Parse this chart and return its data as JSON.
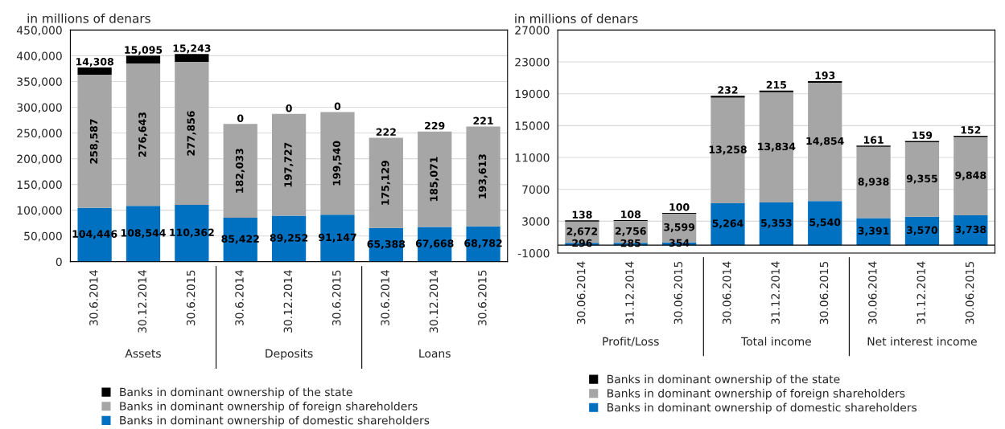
{
  "chart_data": [
    {
      "type": "bar",
      "stacked": true,
      "subtitle": "in millions of denars",
      "categories": [
        "30.6.2014",
        "30.12.2014",
        "30.6.2015",
        "30.6.2014",
        "30.12.2014",
        "30.6.2015",
        "30.6.2014",
        "30.12.2014",
        "30.6.2015"
      ],
      "annotations": [
        "Assets",
        "Deposits",
        "Loans"
      ],
      "series": [
        {
          "name": "Banks in dominant ownership of domestic shareholders",
          "color": "#0070c0",
          "values": [
            104446,
            108544,
            110362,
            85422,
            89252,
            91147,
            65388,
            67668,
            68782
          ],
          "value_labels": [
            "104,446",
            "108,544",
            "110,362",
            "85,422",
            "89,252",
            "91,147",
            "65,388",
            "67,668",
            "68,782"
          ]
        },
        {
          "name": "Banks in dominant ownership of foreign shareholders",
          "color": "#a6a6a6",
          "values": [
            258587,
            276643,
            277856,
            182033,
            197727,
            199540,
            175129,
            185071,
            193613
          ],
          "value_labels": [
            "258,587",
            "276,643",
            "277,856",
            "182,033",
            "197,727",
            "199,540",
            "175,129",
            "185,071",
            "193,613"
          ]
        },
        {
          "name": "Banks in dominant ownership of the state",
          "color": "#000000",
          "values": [
            14308,
            15095,
            15243,
            0,
            0,
            0,
            222,
            229,
            221
          ],
          "value_labels": [
            "14,308",
            "15,095",
            "15,243",
            "0",
            "0",
            "0",
            "222",
            "229",
            "221"
          ]
        }
      ],
      "ylim": [
        0,
        450000
      ],
      "yticks": [
        0,
        {
          "value": 50000,
          "label": "50,000"
        },
        {
          "value": 100000,
          "label": "100,000"
        },
        {
          "value": 150000,
          "label": "150,000"
        },
        {
          "value": 200000,
          "label": "200,000"
        },
        {
          "value": 250000,
          "label": "250,000"
        },
        {
          "value": 300000,
          "label": "300,000"
        },
        {
          "value": 350000,
          "label": "350,000"
        },
        {
          "value": 400000,
          "label": "400,000"
        },
        {
          "value": 450000,
          "label": "450,000"
        }
      ],
      "grid": "y",
      "legend": "bottom"
    },
    {
      "type": "bar",
      "stacked": true,
      "subtitle": "in millions of denars",
      "categories": [
        "30.06.2014",
        "31.12.2014",
        "30.06.2015",
        "30.06.2014",
        "31.12.2014",
        "30.06.2015",
        "30.06.2014",
        "31.12.2014",
        "30.06.2015"
      ],
      "annotations": [
        "Profit/Loss",
        "Total income",
        "Net interest income"
      ],
      "series": [
        {
          "name": "Banks in dominant ownership of domestic shareholders",
          "color": "#0070c0",
          "values": [
            296,
            285,
            354,
            5264,
            5353,
            5540,
            3391,
            3570,
            3738
          ],
          "value_labels": [
            "296",
            "285",
            "354",
            "5,264",
            "5,353",
            "5,540",
            "3,391",
            "3,570",
            "3,738"
          ]
        },
        {
          "name": "Banks in dominant ownership of foreign shareholders",
          "color": "#a6a6a6",
          "values": [
            2672,
            2756,
            3599,
            13258,
            13834,
            14854,
            8938,
            9355,
            9848
          ],
          "value_labels": [
            "2,672",
            "2,756",
            "3,599",
            "13,258",
            "13,834",
            "14,854",
            "8,938",
            "9,355",
            "9,848"
          ]
        },
        {
          "name": "Banks in dominant ownership of the state",
          "color": "#000000",
          "values": [
            138,
            108,
            100,
            232,
            215,
            193,
            161,
            159,
            152
          ],
          "value_labels": [
            "138",
            "108",
            "100",
            "232",
            "215",
            "193",
            "161",
            "159",
            "152"
          ]
        }
      ],
      "ylim": [
        -1000,
        27000
      ],
      "yticks": [
        -1000,
        3000,
        7000,
        11000,
        15000,
        19000,
        23000,
        27000
      ],
      "grid": "y",
      "legend": "bottom"
    }
  ]
}
